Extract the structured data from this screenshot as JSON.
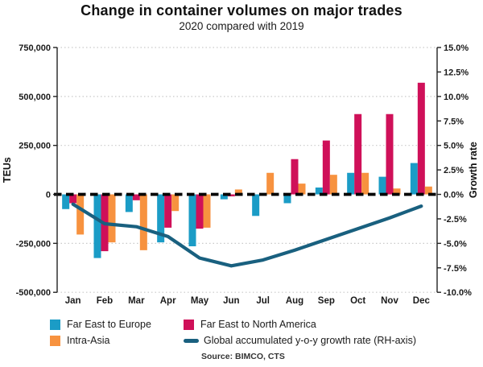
{
  "chart_data": {
    "type": "bar+line",
    "title": "Change in container volumes on major trades",
    "subtitle": "2020 compared with 2019",
    "source": "Source: BIMCO, CTS",
    "months": [
      "Jan",
      "Feb",
      "Mar",
      "Apr",
      "May",
      "Jun",
      "Jul",
      "Aug",
      "Sep",
      "Oct",
      "Nov",
      "Dec"
    ],
    "y_left": {
      "label": "TEUs",
      "min": -500000,
      "max": 750000,
      "tick_values": [
        750000,
        500000,
        250000,
        0,
        -250000,
        -500000
      ],
      "tick_labels": [
        "750,000",
        "500,000",
        "250,000",
        "0",
        "-250,000",
        "-500,000"
      ]
    },
    "y_right": {
      "label": "Growth rate",
      "min": -10,
      "max": 15,
      "tick_labels": [
        "15.0%",
        "12.5%",
        "10.0%",
        "7.5%",
        "5.0%",
        "2.5%",
        "0.0%",
        "-2.5%",
        "-5.0%",
        "-7.5%",
        "-10.0%"
      ]
    },
    "bar_series": [
      {
        "name": "Far East to Europe",
        "color": "#1B9CC6",
        "values_teu": [
          -75000,
          -325000,
          -90000,
          -245000,
          -265000,
          -25000,
          -110000,
          -45000,
          35000,
          110000,
          90000,
          160000
        ]
      },
      {
        "name": "Far East to North America",
        "color": "#CF1059",
        "values_teu": [
          -45000,
          -290000,
          -30000,
          -170000,
          -175000,
          -10000,
          -5000,
          180000,
          275000,
          410000,
          410000,
          570000
        ]
      },
      {
        "name": "Intra-Asia",
        "color": "#F7923F",
        "values_teu": [
          -205000,
          -245000,
          -285000,
          -85000,
          -170000,
          25000,
          110000,
          55000,
          100000,
          110000,
          30000,
          40000
        ]
      }
    ],
    "line_series": {
      "name": "Global accumulated y-o-y growth rate (RH-axis)",
      "color": "#19607F",
      "values_pct": [
        -1.0,
        -3.0,
        -3.3,
        -4.3,
        -6.5,
        -7.3,
        -6.7,
        -5.7,
        -4.6,
        -3.5,
        -2.4,
        -1.2
      ]
    },
    "zero_line": {
      "color": "#000000",
      "style": "dashed"
    },
    "grid": {
      "color": "#C9C9C9",
      "style": "dotted",
      "at_left_ticks_only": true
    },
    "legend_position": "bottom"
  }
}
